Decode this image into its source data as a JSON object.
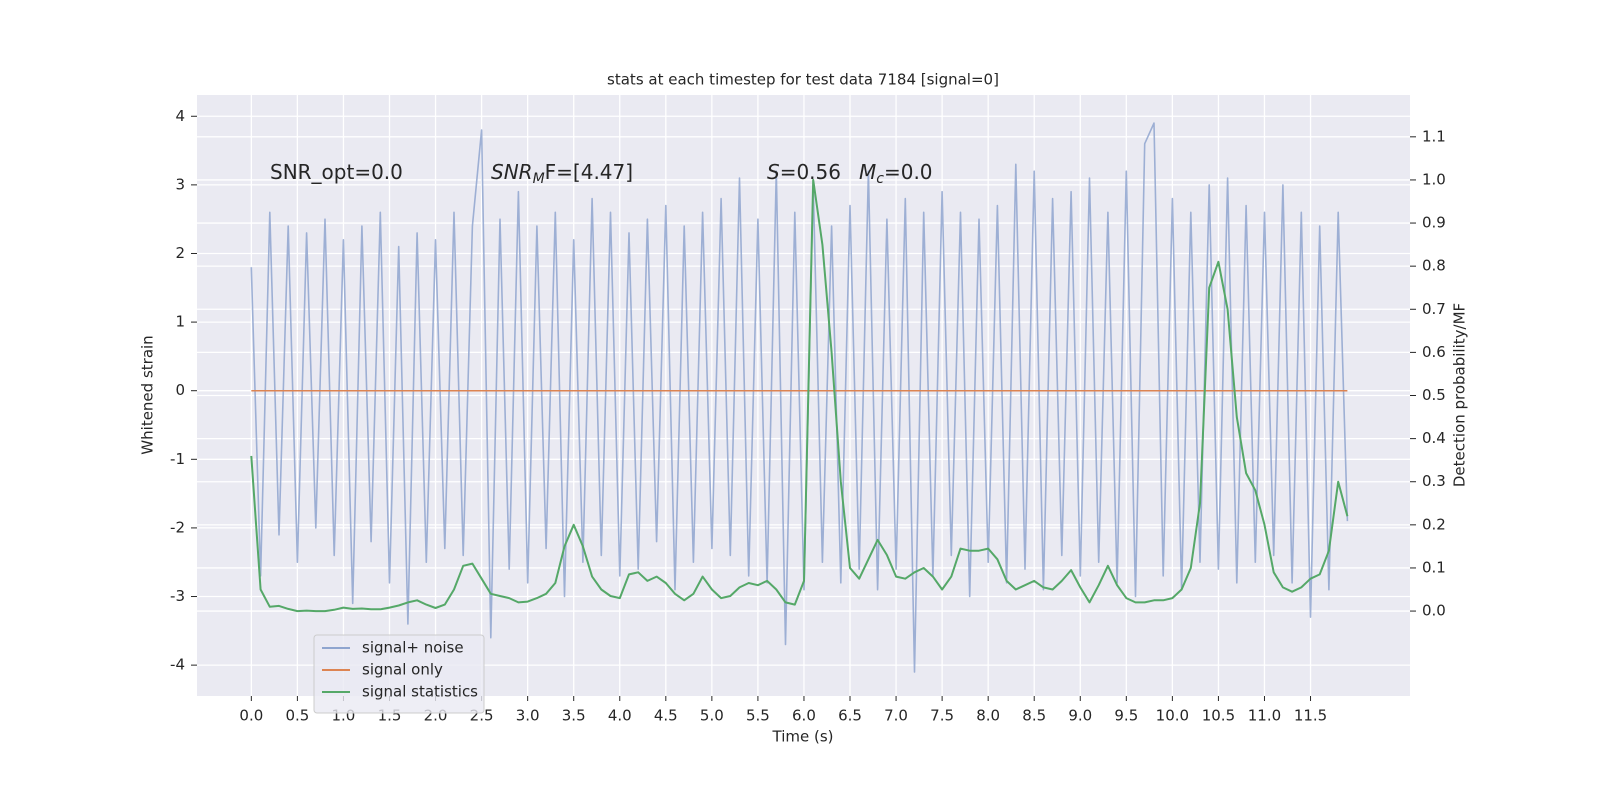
{
  "chart_data": {
    "type": "line",
    "title": "stats at each timestep for test data 7184 [signal=0]",
    "xlabel": "Time (s)",
    "ylabel": "Whitened strain",
    "y2label": "Detection probability/MF",
    "grid": true,
    "legend_loc": "lower left",
    "xlim": [
      -0.59,
      12.58
    ],
    "ylim": [
      -4.45,
      4.31
    ],
    "y2lim": [
      -0.197,
      1.197
    ],
    "xticks": [
      {
        "value": 0,
        "label": "0.0"
      },
      0.5,
      {
        "value": 1,
        "label": "1.0"
      },
      1.5,
      {
        "value": 2,
        "label": "2.0"
      },
      2.5,
      {
        "value": 3,
        "label": "3.0"
      },
      3.5,
      {
        "value": 4,
        "label": "4.0"
      },
      4.5,
      {
        "value": 5,
        "label": "5.0"
      },
      5.5,
      {
        "value": 6,
        "label": "6.0"
      },
      6.5,
      {
        "value": 7,
        "label": "7.0"
      },
      7.5,
      {
        "value": 8,
        "label": "8.0"
      },
      8.5,
      {
        "value": 9,
        "label": "9.0"
      },
      9.5,
      {
        "value": 10,
        "label": "10.0"
      },
      10.5,
      {
        "value": 11,
        "label": "11.0"
      },
      11.5
    ],
    "yticks": [
      -4,
      -3,
      -2,
      -1,
      0,
      1,
      2,
      3,
      4
    ],
    "y2ticks": [
      {
        "value": 0,
        "label": "0.0"
      },
      0.1,
      0.2,
      0.3,
      0.4,
      0.5,
      0.6,
      0.7,
      0.8,
      0.9,
      {
        "value": 1,
        "label": "1.0"
      },
      1.1
    ],
    "annotations": [
      {
        "text": "SNR_opt=0.0"
      },
      {
        "text": "SNR",
        "sub": "M",
        "tail": "F=[4.47]",
        "italic": true
      },
      {
        "text": "S",
        "tail": "=0.56",
        "italic": true
      },
      {
        "text": "M",
        "sub": "c",
        "tail": "=0.0",
        "italic": true
      }
    ],
    "x": [
      0.0,
      0.1,
      0.2,
      0.3,
      0.4,
      0.5,
      0.6,
      0.7,
      0.8,
      0.9,
      1.0,
      1.1,
      1.2,
      1.3,
      1.4,
      1.5,
      1.6,
      1.7,
      1.8,
      1.9,
      2.0,
      2.1,
      2.2,
      2.3,
      2.4,
      2.5,
      2.6,
      2.7,
      2.8,
      2.9,
      3.0,
      3.1,
      3.2,
      3.3,
      3.4,
      3.5,
      3.6,
      3.7,
      3.8,
      3.9,
      4.0,
      4.1,
      4.2,
      4.3,
      4.4,
      4.5,
      4.6,
      4.7,
      4.8,
      4.9,
      5.0,
      5.1,
      5.2,
      5.3,
      5.4,
      5.5,
      5.6,
      5.7,
      5.8,
      5.9,
      6.0,
      6.1,
      6.2,
      6.3,
      6.4,
      6.5,
      6.6,
      6.7,
      6.8,
      6.9,
      7.0,
      7.1,
      7.2,
      7.3,
      7.4,
      7.5,
      7.6,
      7.7,
      7.8,
      7.9,
      8.0,
      8.1,
      8.2,
      8.3,
      8.4,
      8.5,
      8.6,
      8.7,
      8.8,
      8.9,
      9.0,
      9.1,
      9.2,
      9.3,
      9.4,
      9.5,
      9.6,
      9.7,
      9.8,
      9.9,
      10.0,
      10.1,
      10.2,
      10.3,
      10.4,
      10.5,
      10.6,
      10.7,
      10.8,
      10.9,
      11.0,
      11.1,
      11.2,
      11.3,
      11.4,
      11.5,
      11.6,
      11.7,
      11.8,
      11.9
    ],
    "series": [
      {
        "name": "signal+ noise",
        "color": "#8fa5cf",
        "values": [
          1.8,
          -2.7,
          2.6,
          -2.1,
          2.4,
          -2.5,
          2.3,
          -2.0,
          2.5,
          -2.4,
          2.2,
          -3.1,
          2.4,
          -2.2,
          2.6,
          -2.8,
          2.1,
          -3.4,
          2.3,
          -2.5,
          2.2,
          -2.3,
          2.6,
          -2.4,
          2.4,
          3.8,
          -3.6,
          2.5,
          -2.6,
          2.9,
          -2.8,
          2.4,
          -2.3,
          2.6,
          -3.0,
          2.2,
          -2.5,
          2.8,
          -2.4,
          2.6,
          -2.7,
          2.3,
          -2.6,
          2.5,
          -2.2,
          2.7,
          -2.9,
          2.4,
          -2.5,
          2.6,
          -2.3,
          2.8,
          -2.4,
          3.1,
          -2.7,
          2.5,
          -2.8,
          3.2,
          -3.7,
          2.6,
          -2.9,
          3.0,
          -2.5,
          2.4,
          -2.8,
          2.7,
          -2.6,
          3.2,
          -2.9,
          2.5,
          -2.6,
          2.8,
          -4.1,
          2.6,
          -2.7,
          2.9,
          -2.4,
          2.6,
          -3.0,
          2.5,
          -2.5,
          2.7,
          -2.8,
          3.3,
          -2.6,
          3.2,
          -2.9,
          2.8,
          -2.4,
          2.9,
          -2.7,
          3.1,
          -2.5,
          2.6,
          -2.8,
          3.2,
          -3.0,
          3.6,
          3.9,
          -2.7,
          2.8,
          -2.9,
          2.6,
          -2.5,
          3.0,
          -2.6,
          3.1,
          -2.8,
          2.7,
          -2.5,
          2.6,
          -2.4,
          3.0,
          -2.8,
          2.6,
          -3.3,
          2.4,
          -2.9,
          2.6,
          -1.9
        ]
      },
      {
        "name": "signal only",
        "color": "#dd8452",
        "values": [
          0,
          0,
          0,
          0,
          0,
          0,
          0,
          0,
          0,
          0,
          0,
          0,
          0,
          0,
          0,
          0,
          0,
          0,
          0,
          0,
          0,
          0,
          0,
          0,
          0,
          0,
          0,
          0,
          0,
          0,
          0,
          0,
          0,
          0,
          0,
          0,
          0,
          0,
          0,
          0,
          0,
          0,
          0,
          0,
          0,
          0,
          0,
          0,
          0,
          0,
          0,
          0,
          0,
          0,
          0,
          0,
          0,
          0,
          0,
          0,
          0,
          0,
          0,
          0,
          0,
          0,
          0,
          0,
          0,
          0,
          0,
          0,
          0,
          0,
          0,
          0,
          0,
          0,
          0,
          0,
          0,
          0,
          0,
          0,
          0,
          0,
          0,
          0,
          0,
          0,
          0,
          0,
          0,
          0,
          0,
          0,
          0,
          0,
          0,
          0,
          0,
          0,
          0,
          0,
          0,
          0,
          0,
          0,
          0,
          0,
          0,
          0,
          0,
          0,
          0,
          0,
          0,
          0,
          0,
          0
        ]
      },
      {
        "name": "signal statistics",
        "color": "#55a868",
        "axis": "y2",
        "values": [
          0.36,
          0.05,
          0.01,
          0.012,
          0.005,
          0.0,
          0.001,
          0.0,
          0.0,
          0.003,
          0.008,
          0.005,
          0.006,
          0.004,
          0.004,
          0.008,
          0.013,
          0.02,
          0.025,
          0.015,
          0.007,
          0.015,
          0.05,
          0.105,
          0.11,
          0.075,
          0.04,
          0.035,
          0.03,
          0.02,
          0.022,
          0.03,
          0.04,
          0.065,
          0.15,
          0.2,
          0.15,
          0.08,
          0.05,
          0.035,
          0.03,
          0.085,
          0.09,
          0.07,
          0.08,
          0.065,
          0.04,
          0.025,
          0.04,
          0.08,
          0.05,
          0.03,
          0.035,
          0.055,
          0.065,
          0.06,
          0.07,
          0.05,
          0.02,
          0.015,
          0.07,
          1.0,
          0.85,
          0.6,
          0.3,
          0.1,
          0.075,
          0.12,
          0.165,
          0.13,
          0.08,
          0.075,
          0.09,
          0.1,
          0.08,
          0.05,
          0.08,
          0.145,
          0.14,
          0.14,
          0.145,
          0.12,
          0.07,
          0.05,
          0.06,
          0.07,
          0.055,
          0.05,
          0.07,
          0.095,
          0.055,
          0.02,
          0.06,
          0.105,
          0.06,
          0.03,
          0.02,
          0.02,
          0.025,
          0.025,
          0.03,
          0.05,
          0.1,
          0.25,
          0.75,
          0.81,
          0.7,
          0.45,
          0.32,
          0.28,
          0.2,
          0.09,
          0.055,
          0.045,
          0.055,
          0.075,
          0.085,
          0.14,
          0.3,
          0.22
        ]
      }
    ]
  }
}
